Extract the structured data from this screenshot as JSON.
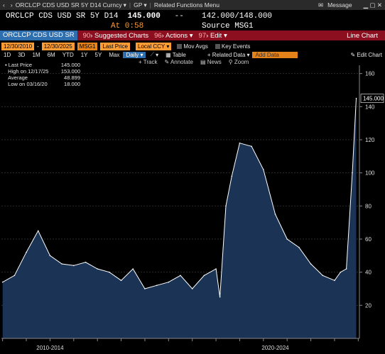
{
  "topbar": {
    "security": "ORCLCP CDS USD SR 5Y D14 Curncy",
    "menu1": "GP",
    "menu2": "Related Functions Menu",
    "message": "Message"
  },
  "quote": {
    "name": "ORCLCP CDS USD SR 5Y D14",
    "last": "145.000",
    "change": "--",
    "bid_ask": "142.000/148.000",
    "time": "At 0:58",
    "source": "Source MSG1"
  },
  "toolbar": {
    "ticker": "ORCLCP CDS USD SR",
    "suggested_num": "90",
    "suggested": "Suggested Charts",
    "actions_num": "96",
    "actions": "Actions",
    "edit_num": "97",
    "edit": "Edit",
    "chart_type": "Line Chart"
  },
  "controls": {
    "start_date": "12/30/2010",
    "end_date": "12/30/2025",
    "source": "MSG1",
    "field": "Last Price",
    "currency": "Local CCY",
    "mov_avgs": "Mov Avgs",
    "key_events": "Key Events"
  },
  "periods": [
    "1D",
    "3D",
    "1M",
    "6M",
    "YTD",
    "1Y",
    "5Y",
    "Max"
  ],
  "frequency": "Daily",
  "table_label": "Table",
  "related_data": "+ Related Data",
  "add_data": "Add Data",
  "edit_chart": "Edit Chart",
  "tools": [
    "Track",
    "Annotate",
    "News",
    "Zoom"
  ],
  "legend": {
    "last_label": "Last Price",
    "last_value": "145.000",
    "high_label": "High on 12/17/25",
    "high_value": "153.000",
    "avg_label": "Average",
    "avg_value": "48.899",
    "low_label": "Low on 03/16/20",
    "low_value": "18.000"
  },
  "chart_data": {
    "type": "area",
    "x": [
      "2011-01",
      "2011-07",
      "2012-01",
      "2012-07",
      "2013-01",
      "2013-07",
      "2014-01",
      "2014-07",
      "2015-01",
      "2015-07",
      "2016-01",
      "2016-07",
      "2017-01",
      "2017-07",
      "2018-01",
      "2018-07",
      "2019-01",
      "2019-07",
      "2020-01",
      "2020-03",
      "2020-06",
      "2020-09",
      "2021-01",
      "2021-07",
      "2022-01",
      "2022-07",
      "2023-01",
      "2023-07",
      "2024-01",
      "2024-07",
      "2025-01",
      "2025-04",
      "2025-07",
      "2025-10",
      "2025-12"
    ],
    "series": [
      {
        "values": [
          34,
          38,
          52,
          65,
          50,
          45,
          44,
          46,
          42,
          40,
          35,
          42,
          30,
          32,
          34,
          38,
          30,
          38,
          42,
          25,
          80,
          98,
          118,
          116,
          102,
          75,
          60,
          55,
          45,
          38,
          35,
          40,
          42,
          100,
          145
        ]
      }
    ],
    "ylim": [
      0,
      165
    ],
    "yticks": [
      20,
      40,
      60,
      80,
      100,
      120,
      140,
      160
    ],
    "last_value_label": "145.000",
    "xtick_labels": [
      "2010-2014",
      "2020-2024"
    ],
    "colors": {
      "line": "#ffffff",
      "fill": "#1b3355",
      "background": "#000000"
    }
  }
}
